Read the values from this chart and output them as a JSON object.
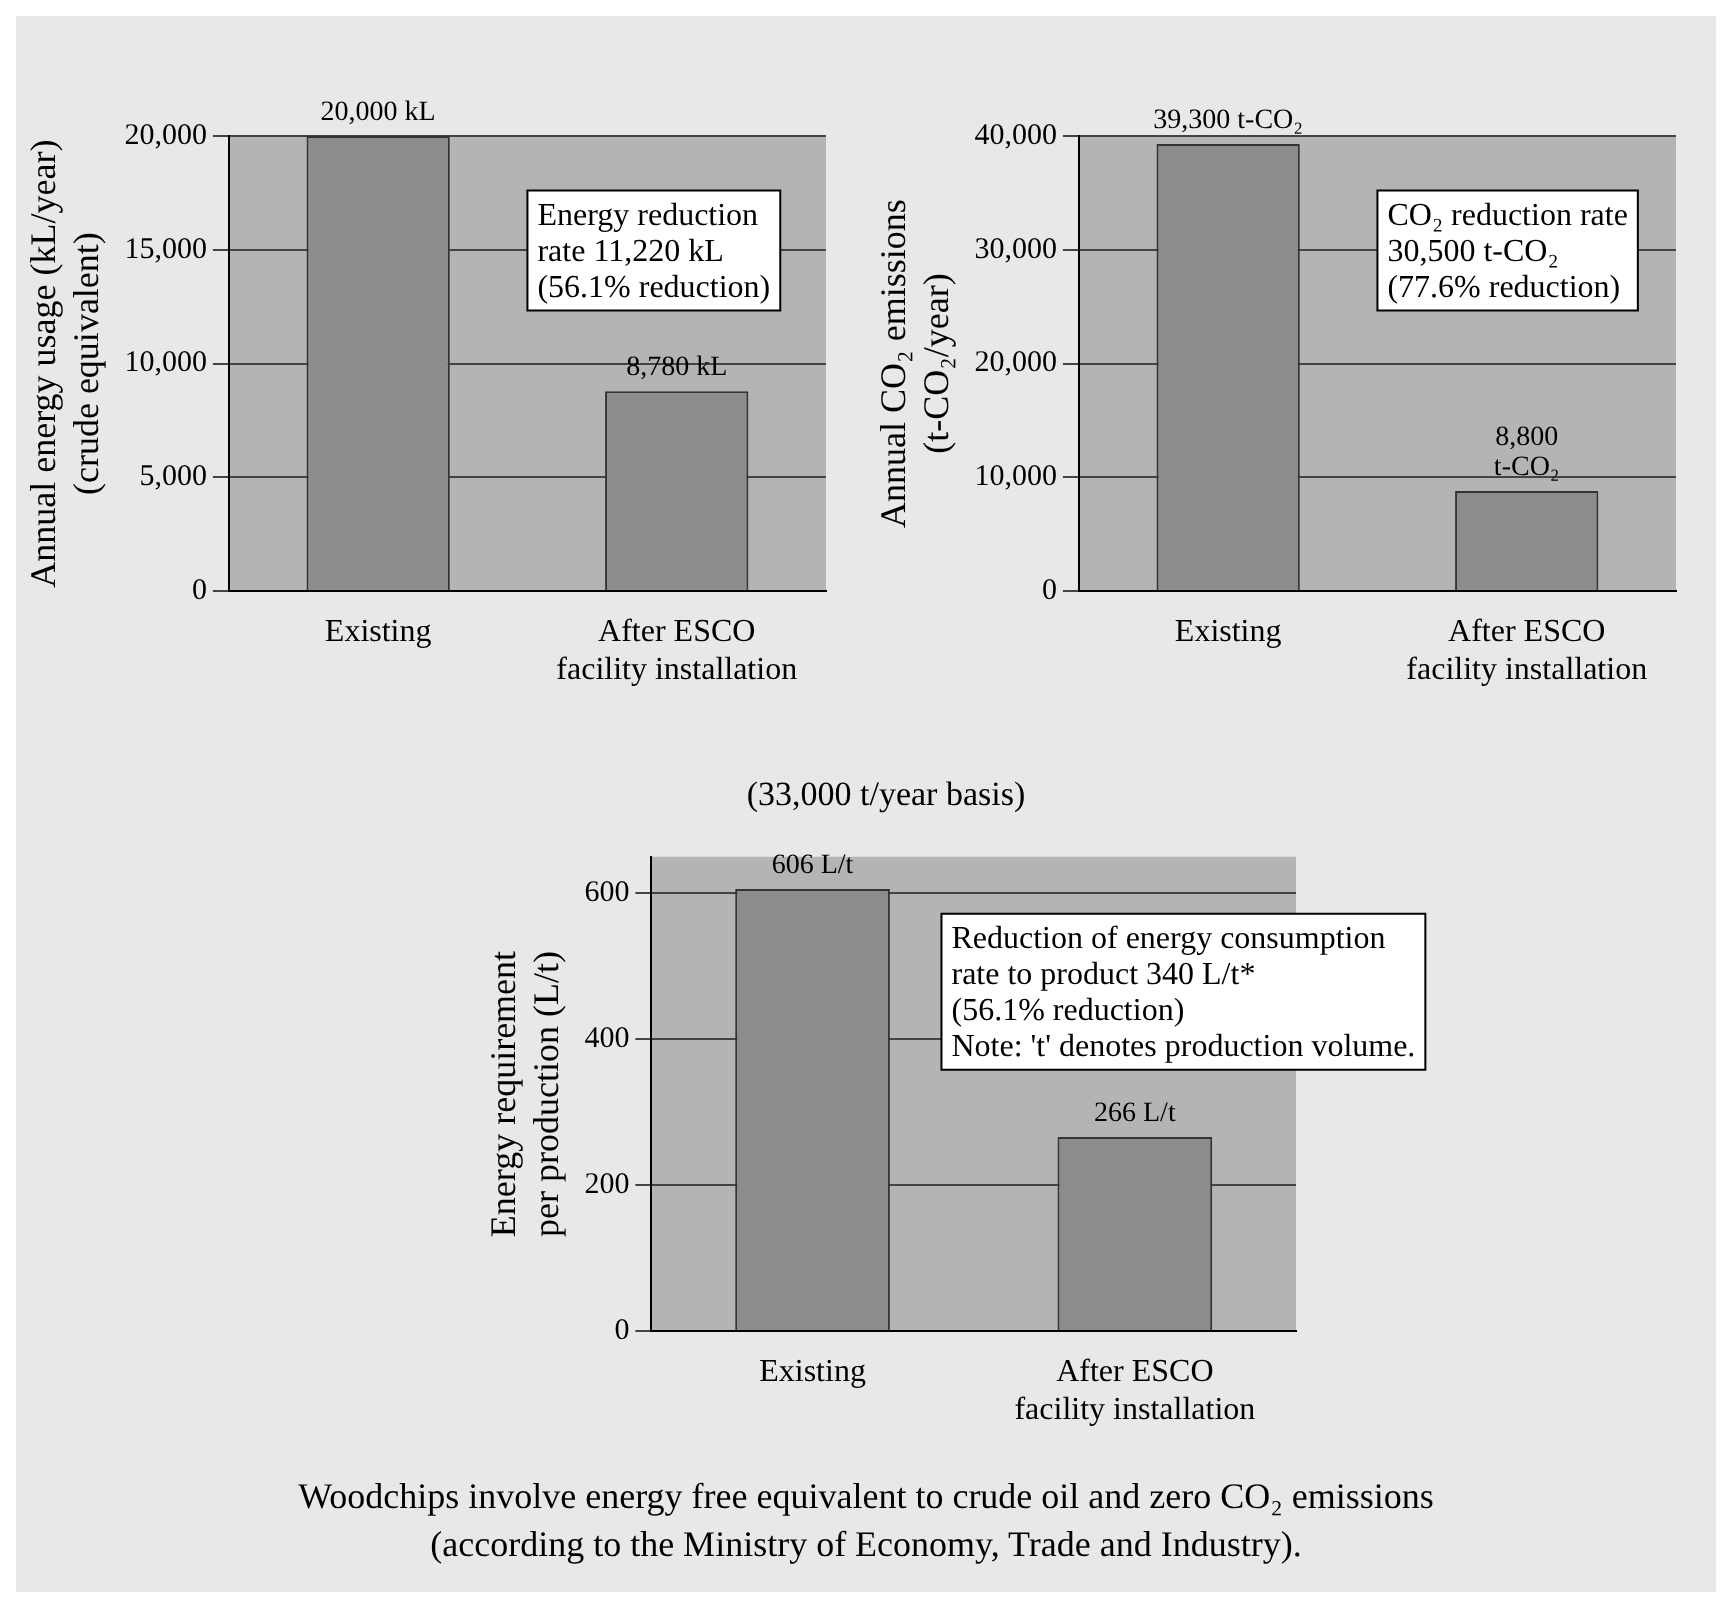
{
  "chart_data": [
    {
      "type": "bar",
      "ylabel": "Annual energy usage (kL/year)\n(crude equivalent)",
      "categories": [
        "Existing",
        "After ESCO\nfacility installation"
      ],
      "values": [
        20000,
        8780
      ],
      "value_labels": [
        "20,000 kL",
        "8,780 kL"
      ],
      "color": "#8c8c8c",
      "ylim": [
        0,
        20000
      ],
      "yticks": [
        0,
        {
          "value": 5000,
          "label": "5,000"
        },
        {
          "value": 10000,
          "label": "10,000"
        },
        {
          "value": 15000,
          "label": "15,000"
        },
        {
          "value": 20000,
          "label": "20,000"
        }
      ],
      "grid": "y",
      "annotations": [
        "Energy reduction\nrate 11,220 kL\n(56.1% reduction)"
      ]
    },
    {
      "type": "bar",
      "ylabel": "Annual CO₂ emissions\n(t-CO₂/year)",
      "categories": [
        "Existing",
        "After ESCO\nfacility installation"
      ],
      "values": [
        39300,
        8800
      ],
      "value_labels": [
        "39,300 t-CO₂",
        "8,800\nt-CO₂"
      ],
      "color": "#8c8c8c",
      "ylim": [
        0,
        40000
      ],
      "yticks": [
        0,
        {
          "value": 10000,
          "label": "10,000"
        },
        {
          "value": 20000,
          "label": "20,000"
        },
        {
          "value": 30000,
          "label": "30,000"
        },
        {
          "value": 40000,
          "label": "40,000"
        }
      ],
      "grid": "y",
      "annotations": [
        "CO₂ reduction rate\n30,500 t-CO₂\n(77.6% reduction)"
      ]
    },
    {
      "type": "bar",
      "title": "(33,000 t/year basis)",
      "ylabel": "Energy requirement\nper production (L/t)",
      "categories": [
        "Existing",
        "After ESCO\nfacility installation"
      ],
      "values": [
        606,
        266
      ],
      "value_labels": [
        "606 L/t",
        "266 L/t"
      ],
      "color": "#8c8c8c",
      "ylim": [
        0,
        650
      ],
      "yticks": [
        0,
        200,
        400,
        600
      ],
      "grid": "y",
      "annotations": [
        "Reduction of energy consumption\nrate to product 340 L/t*\n(56.1% reduction)\nNote: 't' denotes production volume.",
        "Woodchips involve energy free equivalent to crude oil and zero CO₂ emissions\n(according to the Ministry of Economy, Trade and Industry)."
      ]
    }
  ]
}
